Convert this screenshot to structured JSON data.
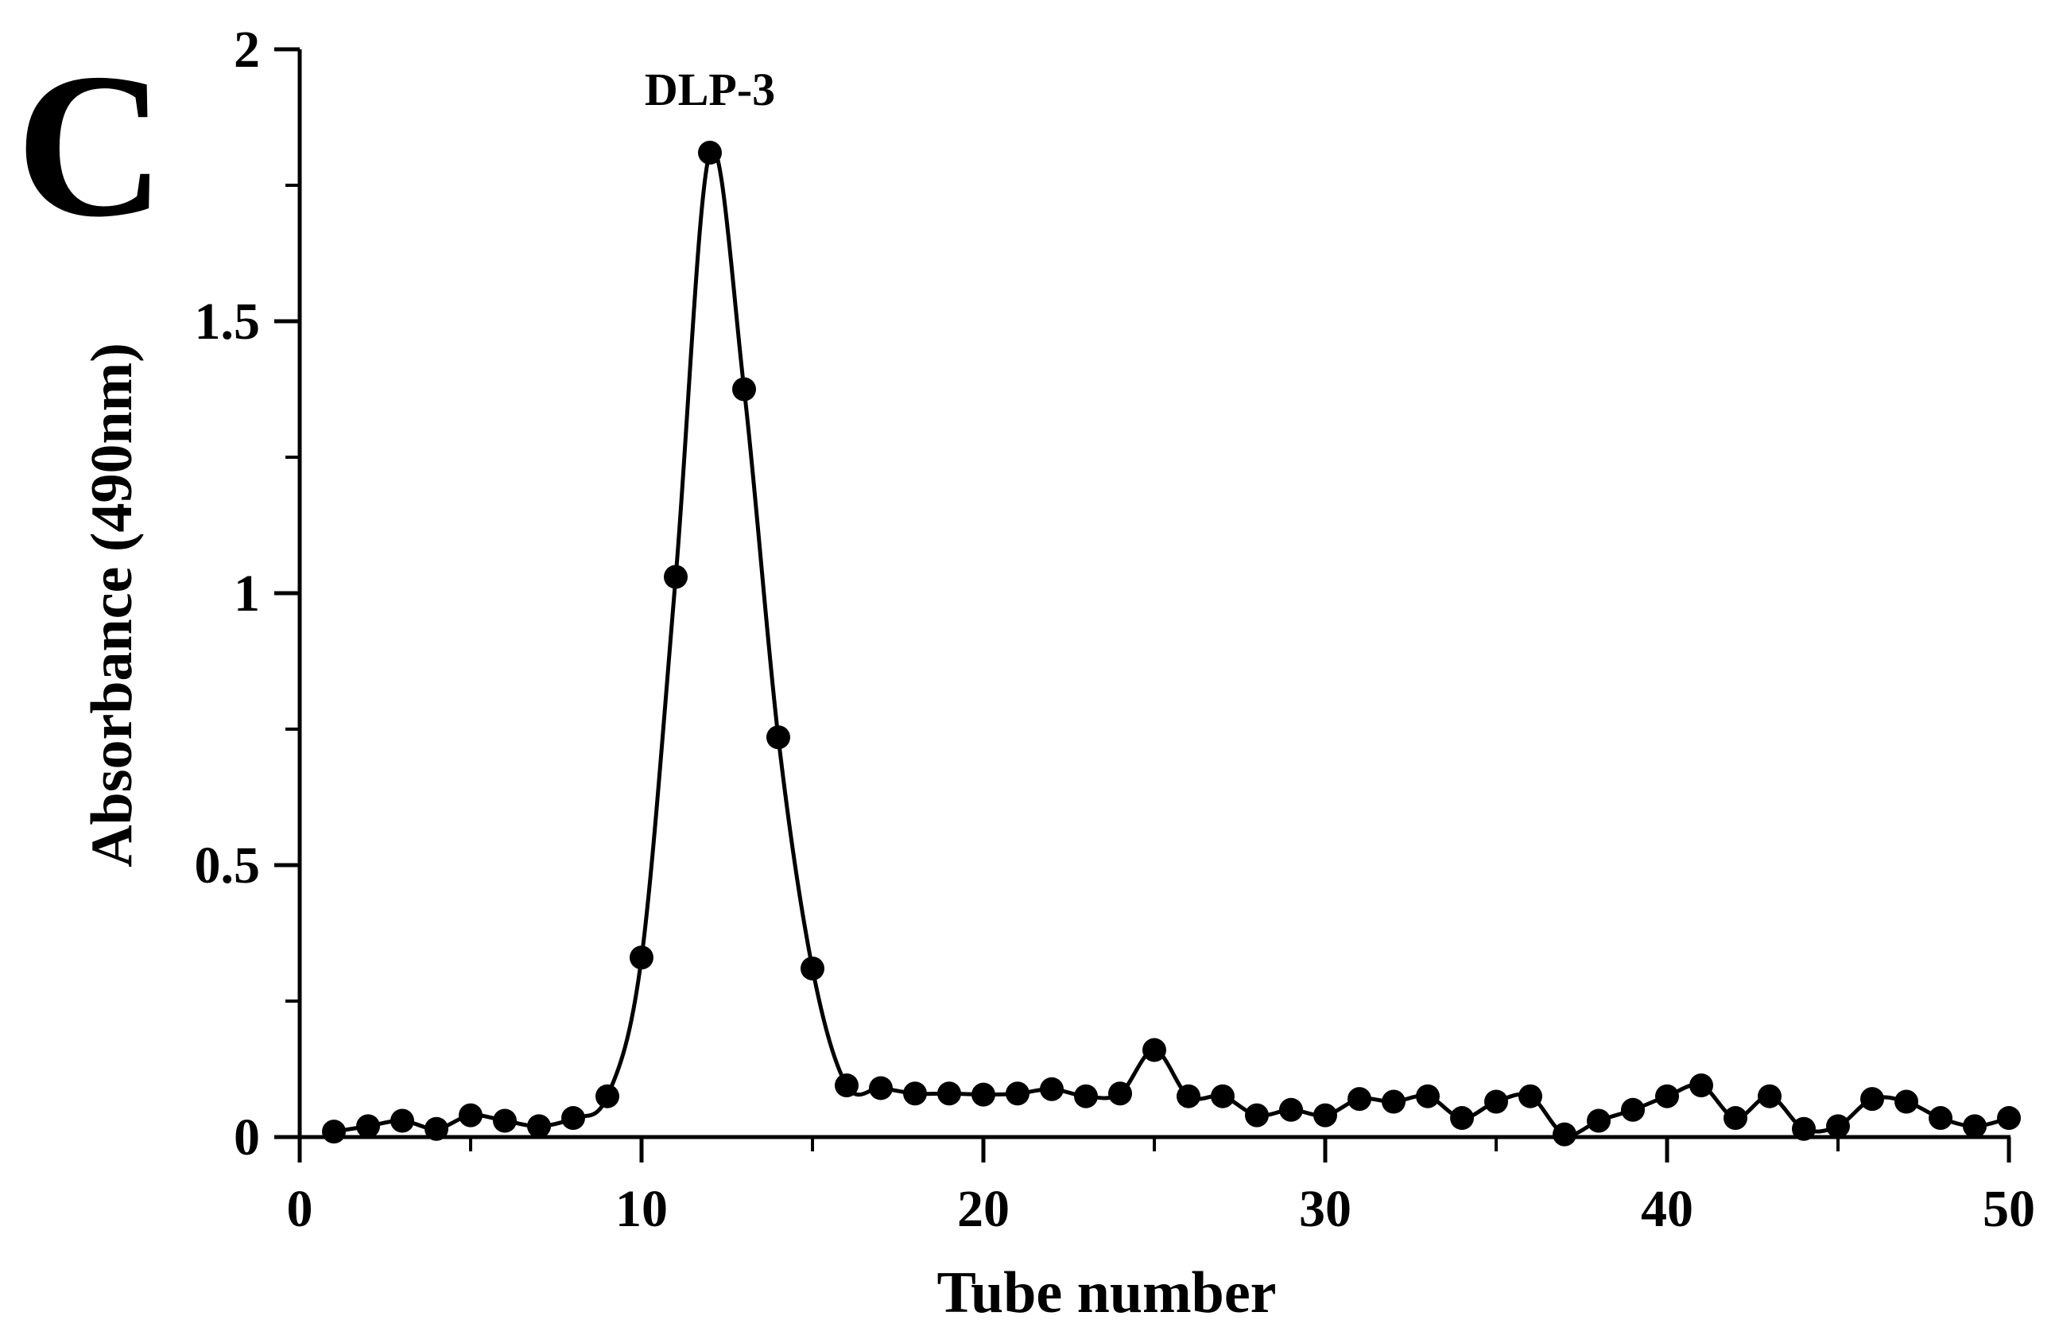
{
  "panel_label": "C",
  "chart_data": {
    "type": "line",
    "title": "",
    "xlabel": "Tube number",
    "ylabel": "Absorbance (490nm)",
    "xlim": [
      0,
      50
    ],
    "ylim": [
      0,
      2
    ],
    "x_ticks": [
      "0",
      "10",
      "20",
      "30",
      "40",
      "50"
    ],
    "y_ticks": [
      "0",
      "0.5",
      "1",
      "1.5",
      "2"
    ],
    "grid": false,
    "legend": "none",
    "marker": "filled-circle",
    "line": "smooth",
    "series_color": "#000000",
    "annotations": [
      {
        "text": "DLP-3",
        "x": 12,
        "y": 1.81
      }
    ],
    "series": [
      {
        "x": [
          1,
          2,
          3,
          4,
          5,
          6,
          7,
          8,
          9,
          10,
          11,
          12,
          13,
          14,
          15,
          16,
          17,
          18,
          19,
          20,
          21,
          22,
          23,
          24,
          25,
          26,
          27,
          28,
          29,
          30,
          31,
          32,
          33,
          34,
          35,
          36,
          37,
          38,
          39,
          40,
          41,
          42,
          43,
          44,
          45,
          46,
          47,
          48,
          49,
          50
        ],
        "values": [
          0.01,
          0.02,
          0.03,
          0.015,
          0.04,
          0.03,
          0.02,
          0.035,
          0.075,
          0.33,
          1.03,
          1.81,
          1.375,
          0.735,
          0.31,
          0.095,
          0.09,
          0.08,
          0.08,
          0.078,
          0.08,
          0.088,
          0.075,
          0.08,
          0.16,
          0.075,
          0.075,
          0.04,
          0.05,
          0.04,
          0.07,
          0.065,
          0.075,
          0.035,
          0.065,
          0.075,
          0.005,
          0.03,
          0.05,
          0.075,
          0.095,
          0.035,
          0.075,
          0.015,
          0.02,
          0.07,
          0.065,
          0.035,
          0.02,
          0.035
        ]
      }
    ]
  }
}
